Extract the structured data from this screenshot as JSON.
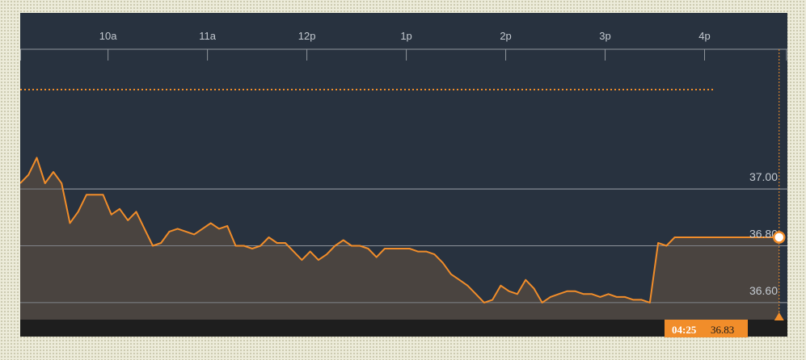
{
  "chart_data": {
    "type": "line",
    "x_ticks": [
      "10a",
      "11a",
      "12p",
      "1p",
      "2p",
      "3p",
      "4p"
    ],
    "y_ticks": [
      "37.00",
      "36.80",
      "36.60"
    ],
    "ylim": [
      36.54,
      37.62
    ],
    "x_range_minutes": [
      547,
      1010
    ],
    "grid": "horizontal",
    "series": [
      {
        "x": [
          547,
          552,
          557,
          562,
          567,
          572,
          577,
          582,
          587,
          592,
          597,
          602,
          607,
          612,
          617,
          622,
          627,
          632,
          637,
          642,
          647,
          652,
          657,
          662,
          667,
          672,
          677,
          682,
          687,
          692,
          697,
          702,
          707,
          712,
          717,
          722,
          727,
          732,
          737,
          742,
          747,
          752,
          757,
          762,
          767,
          772,
          777,
          782,
          787,
          792,
          797,
          802,
          807,
          812,
          817,
          822,
          827,
          832,
          837,
          842,
          847,
          852,
          857,
          862,
          867,
          872,
          877,
          882,
          887,
          892,
          897,
          902,
          907,
          912,
          917,
          922,
          927,
          932,
          937,
          942,
          947,
          952,
          957,
          962,
          967,
          972,
          977,
          982,
          987,
          992,
          997,
          1002,
          1005
        ],
        "y": [
          37.02,
          37.05,
          37.11,
          37.02,
          37.06,
          37.02,
          36.88,
          36.92,
          36.98,
          36.98,
          36.98,
          36.91,
          36.93,
          36.89,
          36.92,
          36.86,
          36.8,
          36.81,
          36.85,
          36.86,
          36.85,
          36.84,
          36.86,
          36.88,
          36.86,
          36.87,
          36.8,
          36.8,
          36.79,
          36.8,
          36.83,
          36.81,
          36.81,
          36.78,
          36.75,
          36.78,
          36.75,
          36.77,
          36.8,
          36.82,
          36.8,
          36.8,
          36.79,
          36.76,
          36.79,
          36.79,
          36.79,
          36.79,
          36.78,
          36.78,
          36.77,
          36.74,
          36.7,
          36.68,
          36.66,
          36.63,
          36.6,
          36.61,
          36.66,
          36.64,
          36.63,
          36.68,
          36.65,
          36.6,
          36.62,
          36.63,
          36.64,
          36.64,
          36.63,
          36.63,
          36.62,
          36.63,
          36.62,
          36.62,
          36.61,
          36.61,
          36.6,
          36.81,
          36.8,
          36.83,
          36.83,
          36.83,
          36.83,
          36.83,
          36.83,
          36.83,
          36.83,
          36.83,
          36.83,
          36.83,
          36.83,
          36.83,
          36.83
        ]
      }
    ],
    "reference_level": 37.35,
    "current": {
      "time": "04:25",
      "price": "36.83",
      "minute": 1005,
      "value": 36.83
    },
    "colors": {
      "background": "#28323f",
      "line": "#f18d2a",
      "area": "#4a4440",
      "grid": "#8f959c",
      "axis_strip": "#1e1e1e",
      "badge": "#f18d2a"
    }
  }
}
